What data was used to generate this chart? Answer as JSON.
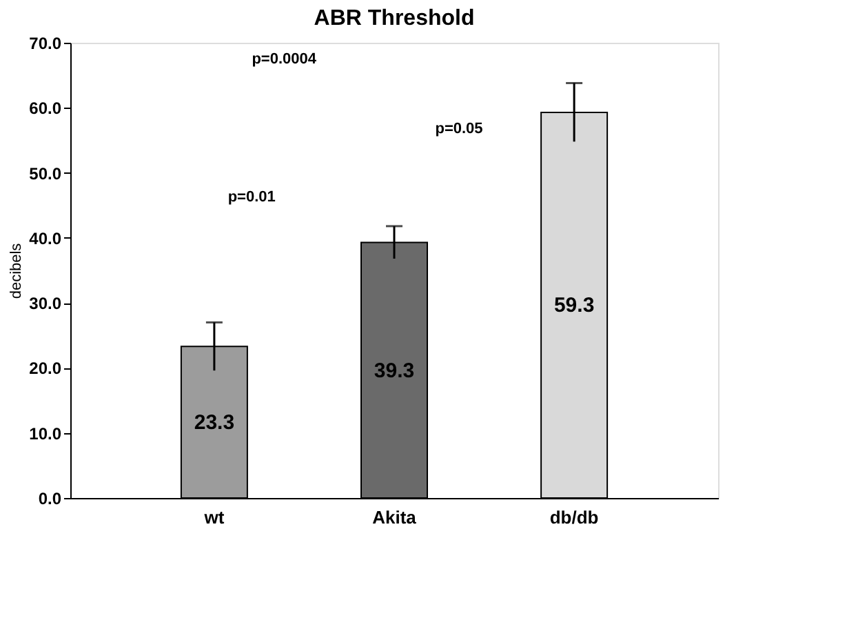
{
  "chart_data": {
    "type": "bar",
    "title": "ABR Threshold",
    "ylabel": "decibels",
    "categories": [
      "wt",
      "Akita",
      "db/db"
    ],
    "values": [
      23.3,
      39.3,
      59.3
    ],
    "colors": [
      "#9c9c9c",
      "#6a6a6a",
      "#d9d9d9"
    ],
    "errors": [
      3.7,
      2.5,
      4.5
    ],
    "data_labels": true,
    "ylim": [
      0,
      70
    ],
    "yticks": [
      {
        "value": 0,
        "label": "0.0"
      },
      {
        "value": 10,
        "label": "10.0"
      },
      {
        "value": 20,
        "label": "20.0"
      },
      {
        "value": 30,
        "label": "30.0"
      },
      {
        "value": 40,
        "label": "40.0"
      },
      {
        "value": 50,
        "label": "50.0"
      },
      {
        "value": 60,
        "label": "60.0"
      },
      {
        "value": 70,
        "label": "70.0"
      }
    ],
    "annotations": [
      "p=0.0004",
      "p=0.05",
      "p=0.01"
    ],
    "grid": false
  }
}
